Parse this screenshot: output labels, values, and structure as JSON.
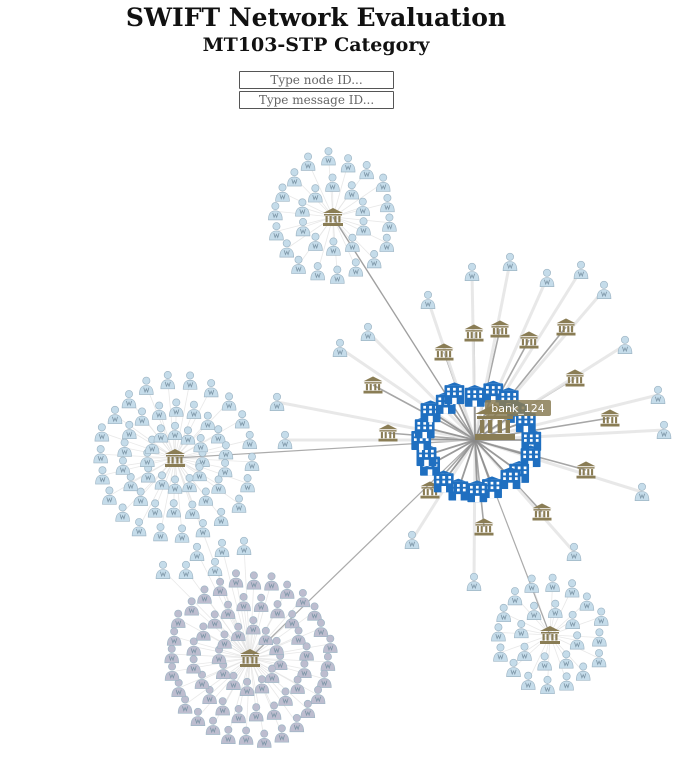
{
  "header": {
    "title": "SWIFT Network Evaluation",
    "subtitle": "MT103-STP Category"
  },
  "search": {
    "node_placeholder": "Type node ID...",
    "message_placeholder": "Type message ID..."
  },
  "graph": {
    "highlighted_label": "bank_124",
    "colors": {
      "bank_gold": "#8a7d55",
      "bank_highlight": "#1f6fc0",
      "customer_light": "#c5dcea",
      "customer_grey": "#bdbdcf",
      "edge": "#888888",
      "edge_light": "#e6e6e6"
    },
    "icons": [
      "bank-icon",
      "customer-icon"
    ]
  }
}
